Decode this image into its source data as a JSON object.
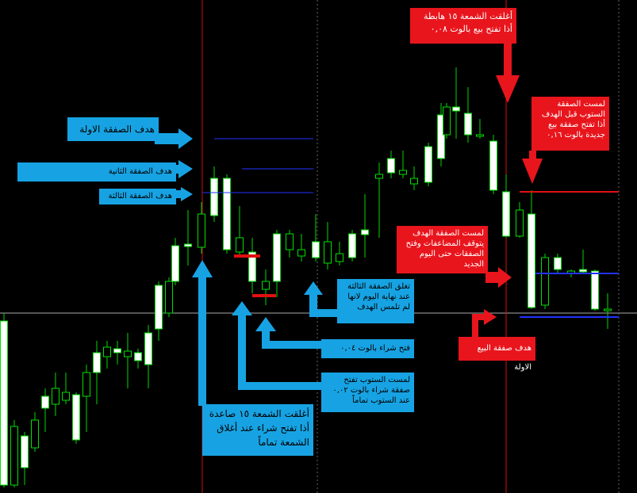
{
  "notes": {
    "top_sell": "أغلقت الشمعة ١٥ هابطة أذا تفتح بيع بالوت ٠,٠٨",
    "stop_new_sell": "لمست الصفقة الستوب قبل الهدف أذا تفتح صفقة بيع جديدة بالوت ٠,١٦",
    "target_1": "هدف الصفقة الاولة",
    "target_2": "هدف الصفقة الثانية",
    "target_3": "هدف الصفقة الثالثة",
    "target_hit": "لمست الصفقة الهدف يتوقف المضاعفات وفتح الصفقات حتى اليوم الجديد",
    "close_third": "تغلق الصفقة الثالثة عند نهاية اليوم لانها لم تلمس الهدف",
    "sell_target": "هدف صفقة البيع الاولة",
    "buy_open": "فتح شراء بالوت ٠,٠٤",
    "stop_buy": "لمست الستوب تفتح صفقة شراء بالوت ٠,٠٢ عند الستوب تماماً",
    "candle_buy": "أغلقت الشمعة ١٥ صاعدة أذا تفتح شراء عند أغلاق الشمعة تماماً"
  }
}
